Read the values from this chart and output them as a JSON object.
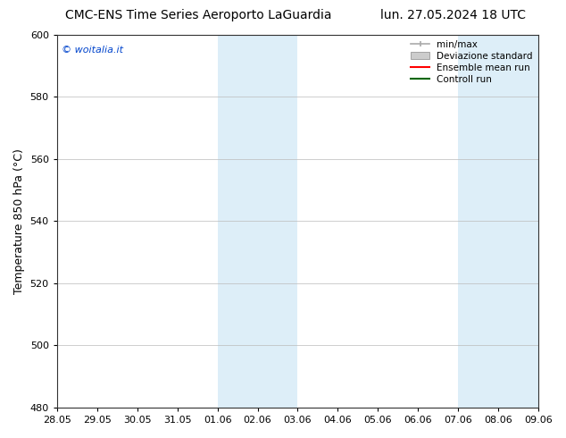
{
  "title_left": "CMC-ENS Time Series Aeroporto LaGuardia",
  "title_right": "lun. 27.05.2024 18 UTC",
  "ylabel": "Temperature 850 hPa (°C)",
  "ylim": [
    480,
    600
  ],
  "yticks": [
    480,
    500,
    520,
    540,
    560,
    580,
    600
  ],
  "xtick_labels": [
    "28.05",
    "29.05",
    "30.05",
    "31.05",
    "01.06",
    "02.06",
    "03.06",
    "04.06",
    "05.06",
    "06.06",
    "07.06",
    "08.06",
    "09.06"
  ],
  "xlim": [
    0,
    12
  ],
  "shaded_regions": [
    {
      "xstart": 4,
      "xend": 6,
      "color": "#ddeef8"
    },
    {
      "xstart": 10,
      "xend": 12,
      "color": "#ddeef8"
    }
  ],
  "watermark_text": "© woitalia.it",
  "watermark_color": "#0044cc",
  "legend_items": [
    {
      "label": "min/max",
      "color": "#aaaaaa",
      "type": "minmax"
    },
    {
      "label": "Deviazione standard",
      "color": "#cccccc",
      "type": "band"
    },
    {
      "label": "Ensemble mean run",
      "color": "#ff0000",
      "type": "line"
    },
    {
      "label": "Controll run",
      "color": "#006600",
      "type": "line"
    }
  ],
  "background_color": "#ffffff",
  "grid_color": "#bbbbbb",
  "tick_fontsize": 8,
  "label_fontsize": 9,
  "title_fontsize": 10
}
